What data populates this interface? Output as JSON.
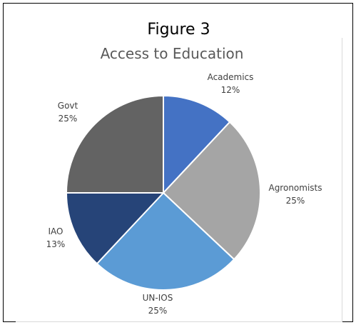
{
  "figure": {
    "label": "Figure 3"
  },
  "chart_data": {
    "type": "pie",
    "title": "Access to Education",
    "slices": [
      {
        "label": "Academics",
        "value": 12,
        "value_label": "12%",
        "color": "#4472c4"
      },
      {
        "label": "Agronomists",
        "value": 25,
        "value_label": "25%",
        "color": "#a5a5a5"
      },
      {
        "label": "UN-IOS",
        "value": 25,
        "value_label": "25%",
        "color": "#5b9bd5"
      },
      {
        "label": "IAO",
        "value": 13,
        "value_label": "13%",
        "color": "#264478"
      },
      {
        "label": "Govt",
        "value": 25,
        "value_label": "25%",
        "color": "#636363"
      }
    ],
    "start_angle_deg": 0,
    "direction": "clockwise",
    "legend": "none",
    "label_color": "#404040",
    "title_color": "#595959"
  }
}
